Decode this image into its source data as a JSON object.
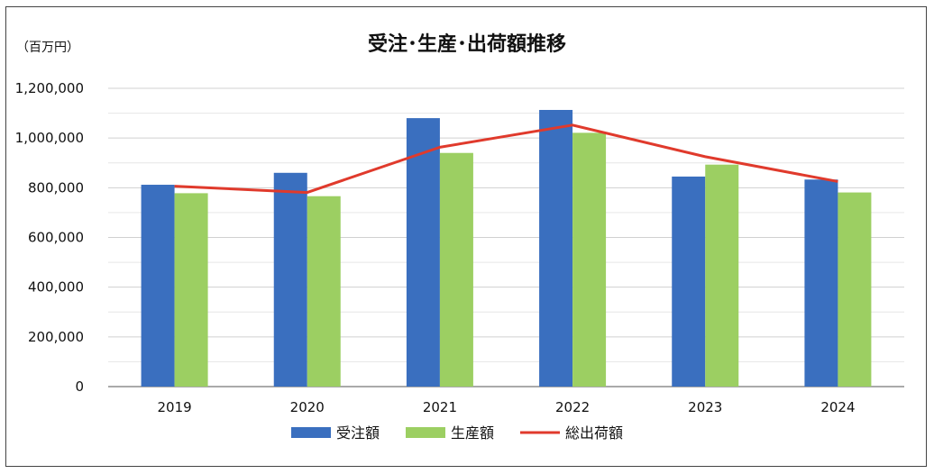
{
  "chart_data": {
    "type": "bar",
    "title": "受注･生産･出荷額推移",
    "unit_label": "（百万円）",
    "xlabel": "",
    "ylabel": "",
    "categories": [
      "2019",
      "2020",
      "2021",
      "2022",
      "2023",
      "2024"
    ],
    "ylim": [
      0,
      1200000
    ],
    "yticks": [
      0,
      200000,
      400000,
      600000,
      800000,
      1000000,
      1200000
    ],
    "ytick_labels": [
      "0",
      "200,000",
      "400,000",
      "600,000",
      "800,000",
      "1,000,000",
      "1,200,000"
    ],
    "grid": true,
    "legend_position": "bottom",
    "series": [
      {
        "name": "受注額",
        "kind": "bar",
        "color": "#3a6fbf",
        "values": [
          812000,
          860000,
          1080000,
          1113000,
          845000,
          833000
        ]
      },
      {
        "name": "生産額",
        "kind": "bar",
        "color": "#9ccf62",
        "values": [
          778000,
          766000,
          940000,
          1021000,
          893000,
          781000
        ]
      },
      {
        "name": "総出荷額",
        "kind": "line",
        "color": "#e03a2c",
        "values": [
          806000,
          781000,
          963000,
          1052000,
          925000,
          825000
        ]
      }
    ]
  }
}
